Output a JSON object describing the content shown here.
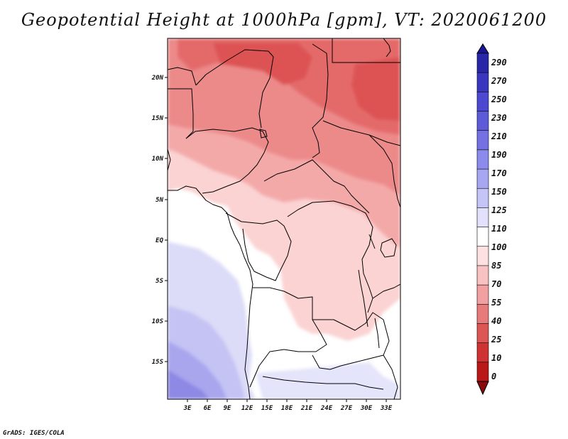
{
  "title": "Geopotential Height at 1000hPa [gpm], VT: 2020061200",
  "credit": "GrADS: IGES/COLA",
  "map": {
    "lat_ticks": [
      "20N",
      "15N",
      "10N",
      "5N",
      "EQ",
      "5S",
      "10S",
      "15S"
    ],
    "lon_ticks": [
      "3E",
      "6E",
      "9E",
      "12E",
      "15E",
      "18E",
      "21E",
      "24E",
      "27E",
      "30E",
      "33E"
    ]
  },
  "colorbar": {
    "labels": [
      "290",
      "270",
      "250",
      "230",
      "210",
      "190",
      "170",
      "150",
      "125",
      "110",
      "100",
      "85",
      "70",
      "55",
      "40",
      "25",
      "10",
      "0"
    ],
    "colors": [
      "#1a1590",
      "#2a26a8",
      "#3b36c0",
      "#4c48cf",
      "#5e5bd9",
      "#7471e2",
      "#8c8aea",
      "#a7a6f1",
      "#c4c4f7",
      "#e1e1fb",
      "#ffffff",
      "#fde1e1",
      "#f8c2c2",
      "#f0a0a0",
      "#e77b7b",
      "#dd5656",
      "#cf3232",
      "#b81818",
      "#8a0a0a"
    ]
  }
}
